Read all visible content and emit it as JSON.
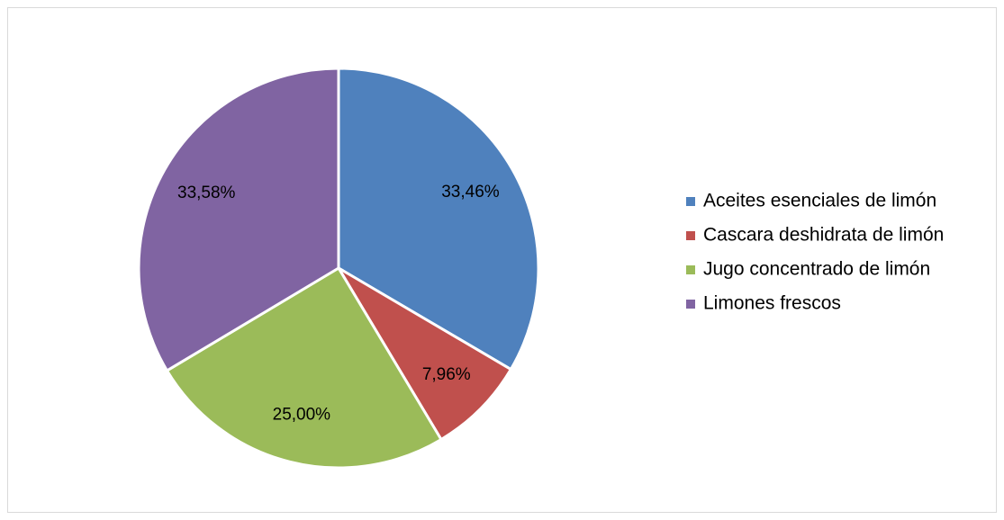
{
  "chart_data": {
    "type": "pie",
    "categories": [
      "Aceites esenciales de limón",
      "Cascara deshidrata de limón",
      "Jugo concentrado de limón",
      "Limones frescos"
    ],
    "values": [
      33.46,
      7.96,
      25.0,
      33.58
    ],
    "value_labels": [
      "33,46%",
      "7,96%",
      "25,00%",
      "33,58%"
    ],
    "colors": [
      "#4f81bd",
      "#c0504d",
      "#9bbb59",
      "#8064a2"
    ],
    "legend": "right"
  }
}
